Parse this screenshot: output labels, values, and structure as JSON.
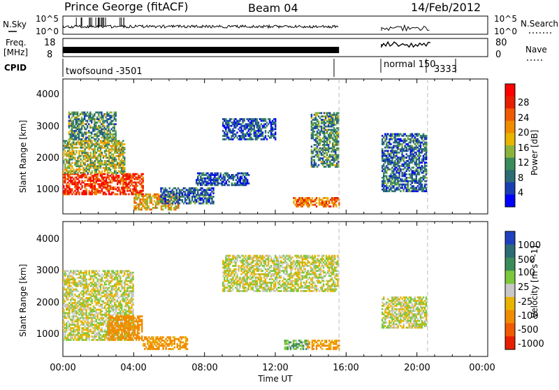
{
  "header": {
    "station": "Prince George (fitACF)",
    "beam": "Beam 04",
    "date": "14/Feb/2012"
  },
  "noise_panel": {
    "left_label": "N.Sky",
    "right_label": "N.Search",
    "left_ticks": [
      "10^5",
      "10^0"
    ],
    "right_ticks": [
      "10^5",
      "10^0"
    ]
  },
  "freq_panel": {
    "left_label_1": "Freq.",
    "left_label_2": "[MHz]",
    "right_label": "Nave",
    "left_ticks": [
      "18",
      "8"
    ],
    "right_ticks": [
      "80",
      "0"
    ]
  },
  "cpid": {
    "label": "CPID",
    "segments": [
      "twofsound -3501",
      "normal 150",
      "3333"
    ]
  },
  "x_axis": {
    "label": "Time UT",
    "ticks": [
      "00:00",
      "04:00",
      "08:00",
      "12:00",
      "16:00",
      "20:00",
      "00:00"
    ]
  },
  "chart_data": [
    {
      "type": "heatmap",
      "title": "Power",
      "ylabel": "Slant Range [km]",
      "xlabel": "",
      "xlim": [
        "00:00",
        "24:00"
      ],
      "ylim": [
        180,
        4600
      ],
      "yticks": [
        "4000",
        "3000",
        "2000",
        "1000"
      ],
      "colorbar": {
        "label": "Power [dB]",
        "ticks": [
          "28",
          "24",
          "20",
          "16",
          "12",
          "8",
          "4"
        ],
        "range": [
          0,
          30
        ],
        "colors": [
          "#0000ff",
          "#1a3fb3",
          "#2d6b75",
          "#3a8c5a",
          "#8cb43c",
          "#e8b400",
          "#f08c00",
          "#f05a00",
          "#e81e00",
          "#ff0000"
        ]
      },
      "regions": [
        {
          "name": "band-low-early",
          "t": [
            0.0,
            4.5
          ],
          "r": [
            800,
            1500
          ],
          "level": 25
        },
        {
          "name": "band-diagonal-early",
          "t": [
            0.0,
            3.5
          ],
          "r": [
            1500,
            2600
          ],
          "level": 14
        },
        {
          "name": "band-scatter-early",
          "t": [
            0.3,
            3.0
          ],
          "r": [
            2600,
            3500
          ],
          "level": 10
        },
        {
          "name": "band-lower-spread",
          "t": [
            4.0,
            6.5
          ],
          "r": [
            300,
            800
          ],
          "level": 18
        },
        {
          "name": "band-mid-1",
          "t": [
            5.5,
            8.5
          ],
          "r": [
            500,
            1000
          ],
          "level": 7
        },
        {
          "name": "band-mid-2",
          "t": [
            7.5,
            10.5
          ],
          "r": [
            1100,
            1500
          ],
          "level": 6
        },
        {
          "name": "band-upper-mid",
          "t": [
            9.0,
            12.0
          ],
          "r": [
            2600,
            3300
          ],
          "level": 6
        },
        {
          "name": "band-late",
          "t": [
            13.0,
            15.6
          ],
          "r": [
            400,
            700
          ],
          "level": 21
        },
        {
          "name": "band-diag-late",
          "t": [
            14.0,
            15.6
          ],
          "r": [
            1700,
            3500
          ],
          "level": 10
        },
        {
          "name": "band-evening",
          "t": [
            18.0,
            20.5
          ],
          "r": [
            900,
            2800
          ],
          "level": 7
        }
      ]
    },
    {
      "type": "heatmap",
      "title": "Velocity",
      "ylabel": "Slant Range [km]",
      "xlabel": "Time UT",
      "xlim": [
        "00:00",
        "24:00"
      ],
      "ylim": [
        180,
        4600
      ],
      "yticks": [
        "4000",
        "3000",
        "2000",
        "1000"
      ],
      "colorbar": {
        "label": "Velocity [m s^-1]",
        "ticks": [
          "1000",
          "500",
          "100",
          "25",
          "-25",
          "-100",
          "-500",
          "-1000"
        ],
        "colors": [
          "#2040c0",
          "#2d6b75",
          "#3a8c5a",
          "#7cc83c",
          "#c8c8c8",
          "#e8b400",
          "#f08c00",
          "#f05a00",
          "#e81e00"
        ]
      },
      "regions": [
        {
          "name": "ground-scatter-early",
          "t": [
            0.0,
            4.0
          ],
          "r": [
            700,
            3000
          ],
          "level": 0
        },
        {
          "name": "neg-vel-early",
          "t": [
            2.5,
            4.5
          ],
          "r": [
            700,
            1500
          ],
          "level": -300
        },
        {
          "name": "neg-vel-mid",
          "t": [
            4.5,
            7.0
          ],
          "r": [
            400,
            800
          ],
          "level": -150
        },
        {
          "name": "gs-upper",
          "t": [
            9.0,
            15.5
          ],
          "r": [
            2300,
            3500
          ],
          "level": 0
        },
        {
          "name": "late-pos",
          "t": [
            12.5,
            13.8
          ],
          "r": [
            400,
            700
          ],
          "level": 80
        },
        {
          "name": "late-neg",
          "t": [
            13.8,
            15.6
          ],
          "r": [
            400,
            700
          ],
          "level": -120
        },
        {
          "name": "evening-gs",
          "t": [
            18.0,
            20.5
          ],
          "r": [
            1100,
            2100
          ],
          "level": 0
        }
      ]
    }
  ]
}
